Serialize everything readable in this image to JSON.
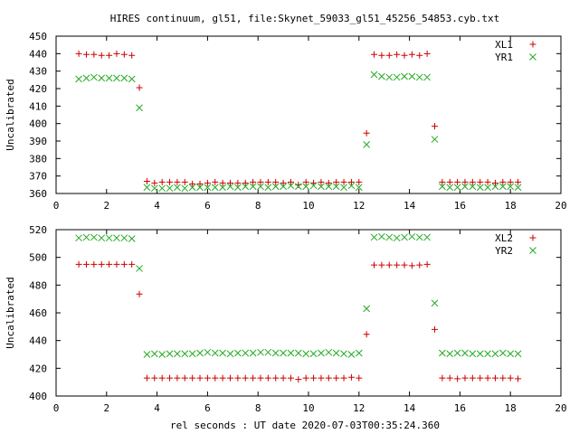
{
  "title": "HIRES continuum, gl51, file:Skynet_59033_gl51_45256_54853.cyb.txt",
  "xlabel": "rel seconds : UT date 2020-07-03T00:35:24.360",
  "colors": {
    "series1": "#cc0000",
    "series2": "#22aa22"
  },
  "chart_data": [
    {
      "type": "scatter",
      "ylabel": "Uncalibrated",
      "xlim": [
        0,
        20
      ],
      "ylim": [
        360,
        450
      ],
      "xticks": [
        "0",
        "2",
        "4",
        "6",
        "8",
        "10",
        "12",
        "14",
        "16",
        "18",
        "20"
      ],
      "yticks": [
        "360",
        "370",
        "380",
        "390",
        "400",
        "410",
        "420",
        "430",
        "440",
        "450"
      ],
      "legend_position": "top-right",
      "x": [
        0.9,
        1.2,
        1.5,
        1.8,
        2.1,
        2.4,
        2.7,
        3.0,
        3.3,
        3.6,
        3.9,
        4.2,
        4.5,
        4.8,
        5.1,
        5.4,
        5.7,
        6.0,
        6.3,
        6.6,
        6.9,
        7.2,
        7.5,
        7.8,
        8.1,
        8.4,
        8.7,
        9.0,
        9.3,
        9.6,
        9.9,
        10.2,
        10.5,
        10.8,
        11.1,
        11.4,
        11.7,
        12.0,
        12.3,
        12.6,
        12.9,
        13.2,
        13.5,
        13.8,
        14.1,
        14.4,
        14.7,
        15.0,
        15.3,
        15.6,
        15.9,
        16.2,
        16.5,
        16.8,
        17.1,
        17.4,
        17.7,
        18.0,
        18.3
      ],
      "series": [
        {
          "name": "XL1",
          "marker": "plus",
          "values": [
            440,
            439.5,
            439.5,
            439,
            439,
            440,
            439.5,
            439,
            420.5,
            367,
            366,
            366.5,
            366.5,
            366.5,
            366.5,
            365.5,
            365.5,
            366,
            366.5,
            366,
            366,
            366,
            366,
            366.5,
            366.5,
            366.5,
            366.5,
            366,
            366.5,
            365,
            366.5,
            366,
            366.5,
            366,
            366.5,
            366.5,
            366.5,
            366.5,
            394.5,
            439.5,
            439,
            439,
            439.5,
            439,
            439.5,
            439,
            440,
            398.5,
            366.5,
            366.5,
            366.5,
            366.5,
            366.5,
            366.5,
            366.5,
            366,
            366.5,
            366.5,
            366.5
          ]
        },
        {
          "name": "YR1",
          "marker": "cross",
          "values": [
            425.5,
            426,
            426.5,
            426,
            426,
            426,
            426,
            425.5,
            409,
            363.5,
            363,
            363,
            363,
            363.5,
            363,
            363.5,
            363.5,
            363.5,
            363.5,
            363.5,
            364,
            363.5,
            364,
            364,
            364,
            363.5,
            364,
            364,
            364.5,
            364,
            364,
            364.5,
            364,
            364,
            364,
            363.5,
            364.5,
            363.5,
            388,
            428,
            427,
            426.5,
            426.5,
            427,
            427,
            426.5,
            426.5,
            391,
            364,
            363.5,
            363.5,
            364,
            364,
            363.5,
            363.5,
            364,
            364,
            364,
            363.5
          ]
        }
      ]
    },
    {
      "type": "scatter",
      "ylabel": "Uncalibrated",
      "xlim": [
        0,
        20
      ],
      "ylim": [
        400,
        520
      ],
      "xticks": [
        "0",
        "2",
        "4",
        "6",
        "8",
        "10",
        "12",
        "14",
        "16",
        "18",
        "20"
      ],
      "yticks": [
        "400",
        "420",
        "440",
        "460",
        "480",
        "500",
        "520"
      ],
      "legend_position": "top-right",
      "x": [
        0.9,
        1.2,
        1.5,
        1.8,
        2.1,
        2.4,
        2.7,
        3.0,
        3.3,
        3.6,
        3.9,
        4.2,
        4.5,
        4.8,
        5.1,
        5.4,
        5.7,
        6.0,
        6.3,
        6.6,
        6.9,
        7.2,
        7.5,
        7.8,
        8.1,
        8.4,
        8.7,
        9.0,
        9.3,
        9.6,
        9.9,
        10.2,
        10.5,
        10.8,
        11.1,
        11.4,
        11.7,
        12.0,
        12.3,
        12.6,
        12.9,
        13.2,
        13.5,
        13.8,
        14.1,
        14.4,
        14.7,
        15.0,
        15.3,
        15.6,
        15.9,
        16.2,
        16.5,
        16.8,
        17.1,
        17.4,
        17.7,
        18.0,
        18.3
      ],
      "series": [
        {
          "name": "XL2",
          "marker": "plus",
          "values": [
            495,
            495,
            495,
            495,
            495,
            495,
            495,
            495,
            473.5,
            413,
            413,
            413,
            413,
            413,
            413,
            413,
            413,
            413,
            413,
            413,
            413,
            413,
            413,
            413,
            413,
            413,
            413,
            413,
            413,
            412,
            413,
            413,
            413,
            413,
            413,
            413,
            413.5,
            413,
            444.5,
            494.5,
            494.5,
            494.5,
            494.5,
            494.5,
            494,
            494.5,
            495,
            448,
            413,
            413,
            412.5,
            413,
            413,
            413,
            413,
            413,
            413,
            413,
            412.5
          ]
        },
        {
          "name": "YR2",
          "marker": "cross",
          "values": [
            514,
            514.5,
            514.5,
            514,
            514,
            514,
            514,
            513.5,
            492,
            430,
            430.5,
            430,
            430.5,
            430.5,
            430.5,
            430.5,
            431,
            431.5,
            431,
            431,
            430.5,
            431,
            431,
            431,
            431.5,
            431.5,
            431,
            431,
            431,
            431,
            430.5,
            430.5,
            431,
            431.5,
            431,
            430.5,
            430,
            431,
            463,
            514.5,
            515,
            514.5,
            514,
            514.5,
            515,
            514.5,
            514.5,
            467,
            431,
            430.5,
            431,
            431,
            430.5,
            430.5,
            430.5,
            430.5,
            431,
            430.5,
            430.5
          ]
        }
      ]
    }
  ]
}
